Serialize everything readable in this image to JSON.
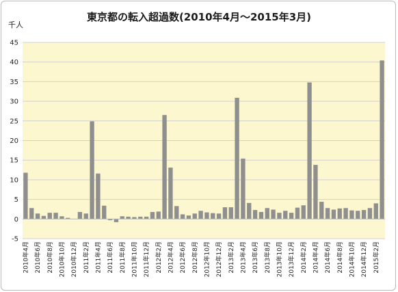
{
  "chart_data": {
    "type": "bar",
    "title": "東京都の転入超過数(2010年4月〜2015年3月)",
    "unit_label": "千人",
    "ylim": [
      -5,
      45
    ],
    "yticks": [
      -5,
      0,
      5,
      10,
      15,
      20,
      25,
      30,
      35,
      40,
      45
    ],
    "grid": true,
    "colors": {
      "plot_background": "#fdf7cf",
      "bar": "#8f8f8f",
      "grid": "#d0d0d0"
    },
    "categories": [
      "2010年4月",
      "2010年5月",
      "2010年6月",
      "2010年7月",
      "2010年8月",
      "2010年9月",
      "2010年10月",
      "2010年11月",
      "2010年12月",
      "2011年1月",
      "2011年2月",
      "2011年3月",
      "2011年4月",
      "2011年5月",
      "2011年6月",
      "2011年7月",
      "2011年8月",
      "2011年9月",
      "2011年10月",
      "2011年11月",
      "2011年12月",
      "2012年1月",
      "2012年2月",
      "2012年3月",
      "2012年4月",
      "2012年5月",
      "2012年6月",
      "2012年7月",
      "2012年8月",
      "2012年9月",
      "2012年10月",
      "2012年11月",
      "2012年12月",
      "2013年1月",
      "2013年2月",
      "2013年3月",
      "2013年4月",
      "2013年5月",
      "2013年6月",
      "2013年7月",
      "2013年8月",
      "2013年9月",
      "2013年10月",
      "2013年11月",
      "2013年12月",
      "2014年1月",
      "2014年2月",
      "2014年3月",
      "2014年4月",
      "2014年5月",
      "2014年6月",
      "2014年7月",
      "2014年8月",
      "2014年9月",
      "2014年10月",
      "2014年11月",
      "2014年12月",
      "2015年1月",
      "2015年2月",
      "2015年3月"
    ],
    "xtick_labels": [
      "2010年4月",
      "2010年6月",
      "2010年8月",
      "2010年10月",
      "2010年12月",
      "2011年2月",
      "2011年4月",
      "2011年6月",
      "2011年8月",
      "2011年10月",
      "2011年12月",
      "2012年2月",
      "2012年4月",
      "2012年6月",
      "2012年8月",
      "2012年10月",
      "2012年12月",
      "2013年2月",
      "2013年4月",
      "2013年6月",
      "2013年8月",
      "2013年10月",
      "2013年12月",
      "2014年2月",
      "2014年4月",
      "2014年6月",
      "2014年8月",
      "2014年10月",
      "2014年12月",
      "2015年2月"
    ],
    "values": [
      11.8,
      2.8,
      1.4,
      0.8,
      1.6,
      1.6,
      0.7,
      0.3,
      0.0,
      1.8,
      1.4,
      24.9,
      11.6,
      3.4,
      -0.3,
      -0.8,
      0.7,
      0.6,
      0.5,
      0.6,
      0.6,
      1.8,
      1.9,
      26.5,
      13.1,
      3.3,
      1.2,
      0.9,
      1.4,
      2.1,
      1.7,
      1.5,
      1.4,
      3.0,
      3.0,
      30.9,
      15.4,
      4.1,
      2.3,
      1.8,
      2.8,
      2.4,
      1.6,
      2.1,
      1.6,
      2.9,
      3.5,
      34.8,
      13.8,
      4.4,
      2.8,
      2.4,
      2.7,
      2.8,
      2.2,
      2.1,
      2.3,
      2.8,
      4.0,
      40.4
    ]
  }
}
